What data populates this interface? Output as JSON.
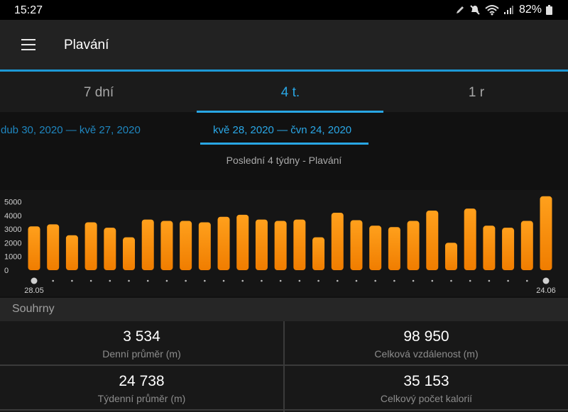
{
  "status_bar": {
    "time": "15:27",
    "battery": "82%",
    "icons": [
      "pen-icon",
      "mute-icon",
      "wifi-icon",
      "signal-icon",
      "battery-icon"
    ]
  },
  "app_bar": {
    "title": "Plavání",
    "menu_icon": "hamburger-menu-icon"
  },
  "tabs": [
    {
      "label": "7 dní",
      "active": false
    },
    {
      "label": "4 t.",
      "active": true
    },
    {
      "label": "1 r",
      "active": false
    }
  ],
  "date_ranges": {
    "previous": "dub 30, 2020 — kvě 27, 2020",
    "current": "kvě 28, 2020 — čvn 24, 2020"
  },
  "chart_title": "Poslední 4 týdny - Plavání",
  "chart_data": {
    "type": "bar",
    "title": "Poslední 4 týdny - Plavání",
    "xlabel": "",
    "ylabel": "",
    "ylim": [
      0,
      5500
    ],
    "yticks": [
      0,
      1000,
      2000,
      3000,
      4000,
      5000
    ],
    "x_tick_labels": {
      "first": "28.05",
      "last": "24.06"
    },
    "values": [
      3200,
      3350,
      2550,
      3500,
      3100,
      2400,
      3700,
      3600,
      3600,
      3500,
      3900,
      4050,
      3700,
      3600,
      3700,
      2400,
      4200,
      3650,
      3250,
      3150,
      3600,
      4350,
      2000,
      4500,
      3250,
      3100,
      3600,
      5400
    ],
    "bar_color": "#ff9500",
    "grid": false
  },
  "summary": {
    "header": "Souhrny",
    "items": [
      {
        "value": "3 534",
        "label": "Denní průměr (m)"
      },
      {
        "value": "98 950",
        "label": "Celková vzdálenost (m)"
      },
      {
        "value": "24 738",
        "label": "Týdenní průměr (m)"
      },
      {
        "value": "35 153",
        "label": "Celkový počet kalorií"
      }
    ]
  },
  "colors": {
    "accent": "#29a6e4",
    "bar": "#ff9500",
    "background": "#111111"
  }
}
